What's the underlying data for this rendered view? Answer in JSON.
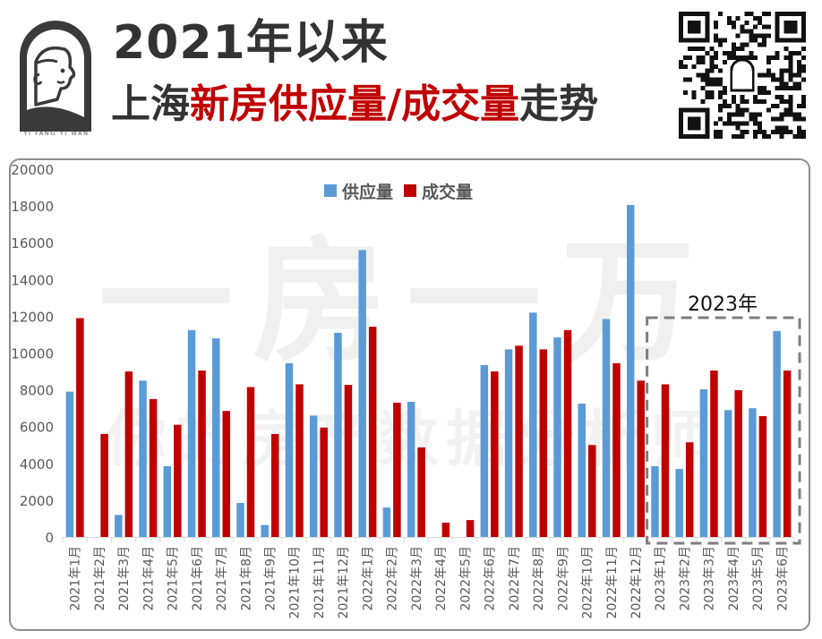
{
  "header": {
    "title_line1": "2021年以来",
    "title_line2_parts": [
      {
        "text": "上海",
        "color": "dark"
      },
      {
        "text": "新房供应量/成交量",
        "color": "red"
      },
      {
        "text": "走势",
        "color": "dark"
      }
    ],
    "logo_caption": "YI FANG·YI WAN",
    "qr_code": "qr-code-icon"
  },
  "watermark": {
    "large": "一房一万",
    "small": "你的房产数据分析师"
  },
  "colors": {
    "supply": "#5b9bd5",
    "sales": "#c00000",
    "title_dark": "#333333",
    "title_red": "#c00000",
    "frame": "#8c8c8c",
    "dashed_box": "#7f7f7f"
  },
  "annotation": {
    "label": "2023年",
    "highlight_range": [
      "2023年1月",
      "2023年6月"
    ]
  },
  "chart_data": {
    "type": "bar",
    "title": "2021年以来上海新房供应量/成交量走势",
    "xlabel": "",
    "ylabel": "",
    "ylim": [
      0,
      20000
    ],
    "yticks": [
      0,
      2000,
      4000,
      6000,
      8000,
      10000,
      12000,
      14000,
      16000,
      18000,
      20000
    ],
    "grid": false,
    "legend_position": "top",
    "categories": [
      "2021年1月",
      "2021年2月",
      "2021年3月",
      "2021年4月",
      "2021年5月",
      "2021年6月",
      "2021年7月",
      "2021年8月",
      "2021年9月",
      "2021年10月",
      "2021年11月",
      "2021年12月",
      "2022年1月",
      "2022年2月",
      "2022年3月",
      "2022年4月",
      "2022年5月",
      "2022年6月",
      "2022年7月",
      "2022年8月",
      "2022年9月",
      "2022年10月",
      "2022年11月",
      "2022年12月",
      "2023年1月",
      "2023年2月",
      "2023年3月",
      "2023年4月",
      "2023年5月",
      "2023年6月"
    ],
    "series": [
      {
        "name": "供应量",
        "color": "#5b9bd5",
        "values": [
          7900,
          0,
          1200,
          8500,
          3850,
          11250,
          10800,
          1850,
          650,
          9450,
          6600,
          11100,
          15600,
          1600,
          7350,
          0,
          0,
          9350,
          10200,
          12200,
          10850,
          7250,
          11850,
          18050,
          3850,
          3700,
          8030,
          6900,
          7000,
          11200
        ]
      },
      {
        "name": "成交量",
        "color": "#c00000",
        "values": [
          11900,
          5600,
          9000,
          7500,
          6100,
          9050,
          6850,
          8150,
          5600,
          8300,
          5950,
          8270,
          11430,
          7300,
          4870,
          780,
          920,
          9000,
          10400,
          10200,
          11250,
          5000,
          9450,
          8500,
          8300,
          5150,
          9050,
          7980,
          6570,
          9050
        ]
      }
    ],
    "annotations": [
      {
        "text": "2023年",
        "type": "dashed-box",
        "from": "2023年1月",
        "to": "2023年6月"
      }
    ]
  }
}
